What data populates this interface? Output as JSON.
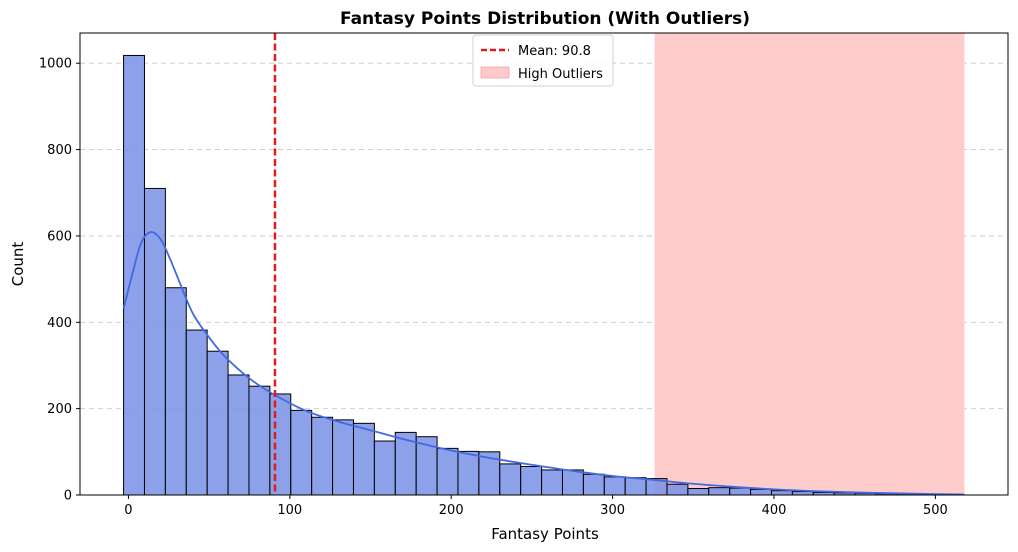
{
  "chart_data": {
    "type": "bar",
    "title": "Fantasy Points Distribution (With Outliers)",
    "xlabel": "Fantasy Points",
    "ylabel": "Count",
    "xlim": [
      -30,
      545
    ],
    "ylim": [
      0,
      1070
    ],
    "xticks": [
      0,
      100,
      200,
      300,
      400,
      500
    ],
    "yticks": [
      0,
      200,
      400,
      600,
      800,
      1000
    ],
    "grid": "y-dashed",
    "bin_start": -3,
    "bin_width": 12.95,
    "counts": [
      1018,
      710,
      480,
      382,
      333,
      278,
      252,
      234,
      196,
      180,
      174,
      166,
      125,
      145,
      135,
      108,
      101,
      100,
      72,
      66,
      58,
      58,
      48,
      42,
      40,
      38,
      25,
      15,
      17,
      16,
      13,
      10,
      8,
      6,
      5,
      4,
      3,
      3,
      2,
      2
    ],
    "kde": {
      "x": [
        -3,
        3,
        8,
        14,
        20,
        26,
        32,
        40,
        50,
        60,
        75,
        90,
        110,
        130,
        150,
        175,
        200,
        225,
        250,
        275,
        300,
        325,
        350,
        375,
        400,
        425,
        450,
        475,
        500,
        518
      ],
      "y": [
        432,
        520,
        585,
        609,
        592,
        545,
        490,
        420,
        365,
        320,
        270,
        233,
        195,
        170,
        150,
        125,
        103,
        85,
        70,
        56,
        44,
        35,
        26,
        19,
        13,
        9,
        6,
        4,
        2,
        1
      ]
    },
    "mean": {
      "value": 90.8,
      "label": "Mean: 90.8"
    },
    "outlier_region": {
      "x_start": 326,
      "x_end": 518,
      "label": "High Outliers"
    },
    "legend": {
      "position": "top-center",
      "entries": [
        "Mean: 90.8",
        "High Outliers"
      ]
    },
    "colors": {
      "bar_fill": "#7891E6",
      "bar_edge": "#000000",
      "kde_line": "#4169E1",
      "mean_line": "#E31A1C",
      "outlier_fill": "#FFC9C9",
      "grid": "#c8c8c8"
    }
  }
}
